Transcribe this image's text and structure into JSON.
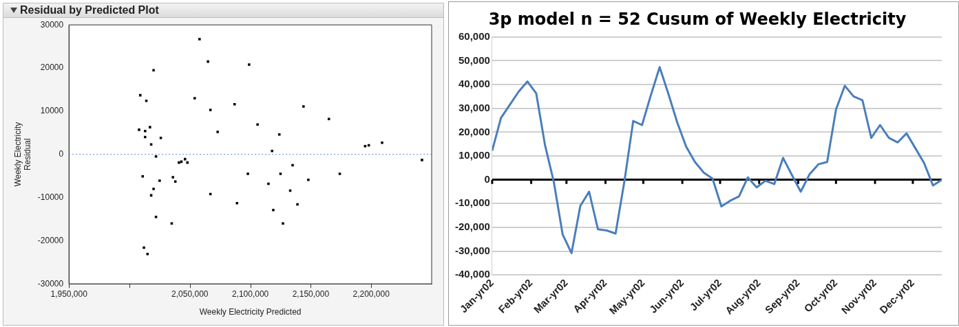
{
  "chart_data": [
    {
      "type": "scatter",
      "title": "Residual by Predicted Plot",
      "xlabel": "Weekly Electricity Predicted",
      "ylabel": "Weekly Electricity\nResidual",
      "marker": "square",
      "grid": false,
      "xlim": [
        1950000,
        2250000
      ],
      "xticks": [
        {
          "value": 1950000,
          "label": "1,950,000"
        },
        {
          "value": 2000000,
          "label": null
        },
        {
          "value": 2050000,
          "label": "2,050,000"
        },
        {
          "value": 2100000,
          "label": "2,100,000"
        },
        {
          "value": 2150000,
          "label": "2,150,000"
        },
        {
          "value": 2200000,
          "label": "2,200,000"
        }
      ],
      "ylim": [
        -30000,
        30000
      ],
      "yticks": [
        -30000,
        -20000,
        -10000,
        0,
        10000,
        20000,
        30000
      ],
      "ref_lines": [
        {
          "axis": "y",
          "value": 0,
          "color": "#5a7fe0",
          "line_style": "dotted"
        }
      ],
      "series": [
        {
          "color": "#000000",
          "x": [
            2058000,
            2065000,
            2020000,
            2009000,
            2014000,
            2054000,
            2087000,
            2067000,
            2008000,
            2013000,
            2017000,
            2073000,
            2013000,
            2026000,
            2018000,
            2022000,
            2041000,
            2043000,
            2046000,
            2048000,
            2011000,
            2025000,
            2036000,
            2038000,
            2020000,
            2018000,
            2067000,
            2089000,
            2022000,
            2035000,
            2012000,
            2015000,
            2099000,
            2144000,
            2165000,
            2106000,
            2124000,
            2118000,
            2195000,
            2198000,
            2209000,
            2242000,
            2098000,
            2125000,
            2135000,
            2174000,
            2115000,
            2148000,
            2133000,
            2139000,
            2119000,
            2127000
          ],
          "values": [
            26700,
            21500,
            19500,
            13700,
            12400,
            13000,
            11600,
            10300,
            5700,
            5400,
            6300,
            5200,
            4000,
            3800,
            2300,
            -500,
            -1900,
            -1700,
            -1100,
            -1900,
            -5100,
            -6100,
            -5300,
            -6300,
            -8000,
            -9500,
            -9200,
            -11300,
            -14500,
            -16000,
            -21600,
            -23100,
            20800,
            11100,
            8200,
            6900,
            4600,
            800,
            1900,
            2100,
            2700,
            -1300,
            -4500,
            -4500,
            -2500,
            -4500,
            -6800,
            -5900,
            -8400,
            -11600,
            -12900,
            -16000
          ]
        }
      ]
    },
    {
      "type": "line",
      "title": "3p model n = 52 Cusum of Weekly Electricity",
      "grid": "y",
      "marker": "none",
      "xlim": [
        "2002-01-01",
        "2002-12-24"
      ],
      "xticks": [
        {
          "value": "2002-01-01",
          "label": "Jan-yr02"
        },
        {
          "value": "2002-02-01",
          "label": "Feb-yr02"
        },
        {
          "value": "2002-03-01",
          "label": "Mar-yr02"
        },
        {
          "value": "2002-04-01",
          "label": "Apr-yr02"
        },
        {
          "value": "2002-05-01",
          "label": "May-yr02"
        },
        {
          "value": "2002-06-01",
          "label": "Jun-yr02"
        },
        {
          "value": "2002-07-01",
          "label": "Jul-yr02"
        },
        {
          "value": "2002-08-01",
          "label": "Aug-yr02"
        },
        {
          "value": "2002-09-01",
          "label": "Sep-yr02"
        },
        {
          "value": "2002-10-01",
          "label": "Oct-yr02"
        },
        {
          "value": "2002-11-01",
          "label": "Nov-yr02"
        },
        {
          "value": "2002-12-01",
          "label": "Dec-yr02"
        }
      ],
      "ylim": [
        -40000,
        60000
      ],
      "yticks": [
        {
          "value": -40000,
          "label": "-40,000"
        },
        {
          "value": -30000,
          "label": "-30,000"
        },
        {
          "value": -20000,
          "label": "-20,000"
        },
        {
          "value": -10000,
          "label": "-10,000"
        },
        0,
        {
          "value": 10000,
          "label": "10,000"
        },
        {
          "value": 20000,
          "label": "20,000"
        },
        {
          "value": 30000,
          "label": "30,000"
        },
        {
          "value": 40000,
          "label": "40,000"
        },
        {
          "value": 50000,
          "label": "50,000"
        },
        {
          "value": 60000,
          "label": "60,000"
        }
      ],
      "x": [
        "2002-01-01",
        "2002-01-08",
        "2002-01-15",
        "2002-01-22",
        "2002-01-29",
        "2002-02-05",
        "2002-02-12",
        "2002-02-19",
        "2002-02-26",
        "2002-03-05",
        "2002-03-12",
        "2002-03-19",
        "2002-03-26",
        "2002-04-02",
        "2002-04-09",
        "2002-04-16",
        "2002-04-23",
        "2002-04-30",
        "2002-05-07",
        "2002-05-14",
        "2002-05-21",
        "2002-05-28",
        "2002-06-04",
        "2002-06-11",
        "2002-06-18",
        "2002-06-25",
        "2002-07-02",
        "2002-07-09",
        "2002-07-16",
        "2002-07-23",
        "2002-07-30",
        "2002-08-06",
        "2002-08-13",
        "2002-08-20",
        "2002-08-27",
        "2002-09-03",
        "2002-09-10",
        "2002-09-17",
        "2002-09-24",
        "2002-10-01",
        "2002-10-08",
        "2002-10-15",
        "2002-10-22",
        "2002-10-29",
        "2002-11-05",
        "2002-11-12",
        "2002-11-19",
        "2002-11-26",
        "2002-12-03",
        "2002-12-10",
        "2002-12-17",
        "2002-12-24"
      ],
      "series": [
        {
          "color": "#4a7ebb",
          "values": [
            12200,
            26000,
            31500,
            37000,
            41300,
            36300,
            14500,
            -1000,
            -23000,
            -30800,
            -11000,
            -5000,
            -20800,
            -21300,
            -22600,
            -700,
            24700,
            23000,
            35500,
            47300,
            36000,
            24000,
            14000,
            7500,
            3000,
            500,
            -11200,
            -8800,
            -7000,
            1000,
            -3200,
            -400,
            -1800,
            9200,
            2000,
            -5000,
            2300,
            6500,
            7500,
            29500,
            39500,
            35000,
            33400,
            17600,
            23000,
            17600,
            15700,
            19500,
            13300,
            7000,
            -2400,
            0
          ]
        }
      ]
    }
  ]
}
